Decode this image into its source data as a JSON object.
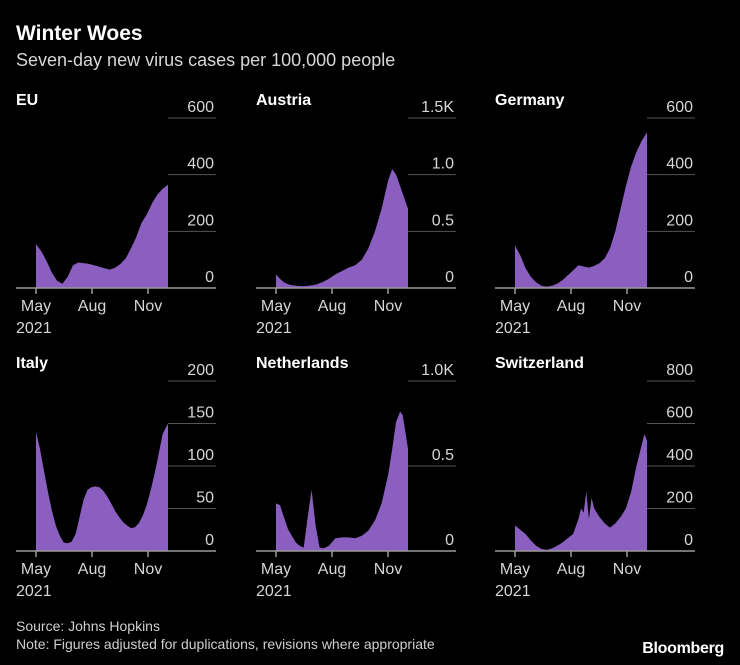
{
  "header": {
    "title": "Winter Woes",
    "subtitle": "Seven-day new virus cases per 100,000 people"
  },
  "footer": {
    "source": "Source: Johns Hopkins",
    "note": "Note: Figures adjusted for duplications, revisions where appropriate",
    "brand": "Bloomberg"
  },
  "colors": {
    "area": "#8a5fbf",
    "axis": "#9a9a9a",
    "text": "#d6d6d6"
  },
  "chart_data": [
    {
      "type": "area",
      "title": "EU",
      "x_ticks": [
        "May",
        "Aug",
        "Nov"
      ],
      "year_label": "2021",
      "y_ticks": [
        "0",
        "200",
        "400",
        "600"
      ],
      "ylim": [
        0,
        600
      ],
      "series": [
        {
          "x": [
            0,
            4,
            8,
            12,
            16,
            20,
            24,
            28,
            32,
            36,
            40,
            44,
            48,
            52,
            56,
            60,
            64,
            68,
            72,
            76,
            80,
            84,
            88,
            92,
            96,
            100
          ],
          "values": [
            155,
            130,
            95,
            55,
            25,
            15,
            40,
            80,
            90,
            88,
            85,
            80,
            75,
            70,
            65,
            72,
            85,
            105,
            140,
            180,
            230,
            260,
            300,
            330,
            350,
            365
          ]
        }
      ]
    },
    {
      "type": "area",
      "title": "Austria",
      "x_ticks": [
        "May",
        "Aug",
        "Nov"
      ],
      "year_label": "2021",
      "y_ticks": [
        "0",
        "0.5",
        "1.0",
        "1.5K"
      ],
      "ylim": [
        0,
        1500
      ],
      "series": [
        {
          "x": [
            0,
            3,
            6,
            10,
            15,
            20,
            25,
            30,
            35,
            40,
            45,
            50,
            55,
            60,
            65,
            70,
            75,
            80,
            85,
            88,
            91,
            94,
            97,
            100
          ],
          "values": [
            120,
            80,
            50,
            30,
            20,
            15,
            20,
            30,
            50,
            80,
            120,
            150,
            180,
            200,
            250,
            350,
            500,
            700,
            950,
            1050,
            1000,
            900,
            800,
            700
          ]
        }
      ]
    },
    {
      "type": "area",
      "title": "Germany",
      "x_ticks": [
        "May",
        "Aug",
        "Nov"
      ],
      "year_label": "2021",
      "y_ticks": [
        "0",
        "200",
        "400",
        "600"
      ],
      "ylim": [
        0,
        600
      ],
      "series": [
        {
          "x": [
            0,
            4,
            8,
            12,
            16,
            20,
            24,
            28,
            32,
            36,
            40,
            44,
            48,
            52,
            56,
            60,
            64,
            68,
            72,
            76,
            80,
            84,
            88,
            92,
            96,
            100
          ],
          "values": [
            150,
            115,
            70,
            40,
            20,
            8,
            5,
            8,
            15,
            28,
            45,
            62,
            80,
            76,
            72,
            78,
            88,
            105,
            140,
            200,
            280,
            360,
            430,
            480,
            520,
            550
          ]
        }
      ]
    },
    {
      "type": "area",
      "title": "Italy",
      "x_ticks": [
        "May",
        "Aug",
        "Nov"
      ],
      "year_label": "2021",
      "y_ticks": [
        "0",
        "50",
        "100",
        "150",
        "200"
      ],
      "ylim": [
        0,
        200
      ],
      "series": [
        {
          "x": [
            0,
            3,
            6,
            9,
            12,
            15,
            18,
            21,
            24,
            27,
            30,
            33,
            36,
            39,
            42,
            45,
            48,
            51,
            54,
            57,
            60,
            63,
            66,
            69,
            72,
            75,
            78,
            81,
            84,
            87,
            90,
            93,
            96,
            100
          ],
          "values": [
            140,
            120,
            95,
            70,
            48,
            30,
            18,
            10,
            9,
            11,
            20,
            40,
            60,
            72,
            75,
            76,
            75,
            71,
            64,
            56,
            47,
            40,
            34,
            30,
            27,
            28,
            33,
            42,
            55,
            72,
            92,
            115,
            138,
            150
          ]
        }
      ]
    },
    {
      "type": "area",
      "title": "Netherlands",
      "x_ticks": [
        "May",
        "Aug",
        "Nov"
      ],
      "year_label": "2021",
      "y_ticks": [
        "0",
        "0.5",
        "1.0K"
      ],
      "ylim": [
        0,
        1000
      ],
      "series": [
        {
          "x": [
            0,
            3,
            6,
            9,
            12,
            15,
            18,
            21,
            24,
            27,
            30,
            33,
            36,
            40,
            45,
            50,
            55,
            60,
            65,
            70,
            75,
            80,
            85,
            88,
            91,
            94,
            96,
            98,
            100
          ],
          "values": [
            280,
            270,
            200,
            130,
            90,
            50,
            30,
            20,
            200,
            360,
            150,
            20,
            15,
            30,
            75,
            80,
            80,
            75,
            90,
            120,
            180,
            280,
            450,
            600,
            760,
            820,
            800,
            700,
            600
          ]
        }
      ]
    },
    {
      "type": "area",
      "title": "Switzerland",
      "x_ticks": [
        "May",
        "Aug",
        "Nov"
      ],
      "year_label": "2021",
      "y_ticks": [
        "0",
        "200",
        "400",
        "600",
        "800"
      ],
      "ylim": [
        0,
        800
      ],
      "series": [
        {
          "x": [
            0,
            4,
            8,
            12,
            16,
            20,
            24,
            28,
            32,
            36,
            40,
            44,
            48,
            50,
            52,
            54,
            56,
            58,
            60,
            64,
            68,
            72,
            76,
            80,
            84,
            88,
            92,
            94,
            96,
            98,
            100
          ],
          "values": [
            120,
            100,
            80,
            50,
            25,
            10,
            5,
            12,
            25,
            40,
            60,
            80,
            150,
            200,
            180,
            280,
            150,
            250,
            200,
            160,
            130,
            110,
            130,
            160,
            200,
            280,
            400,
            450,
            500,
            550,
            520
          ]
        }
      ]
    }
  ]
}
